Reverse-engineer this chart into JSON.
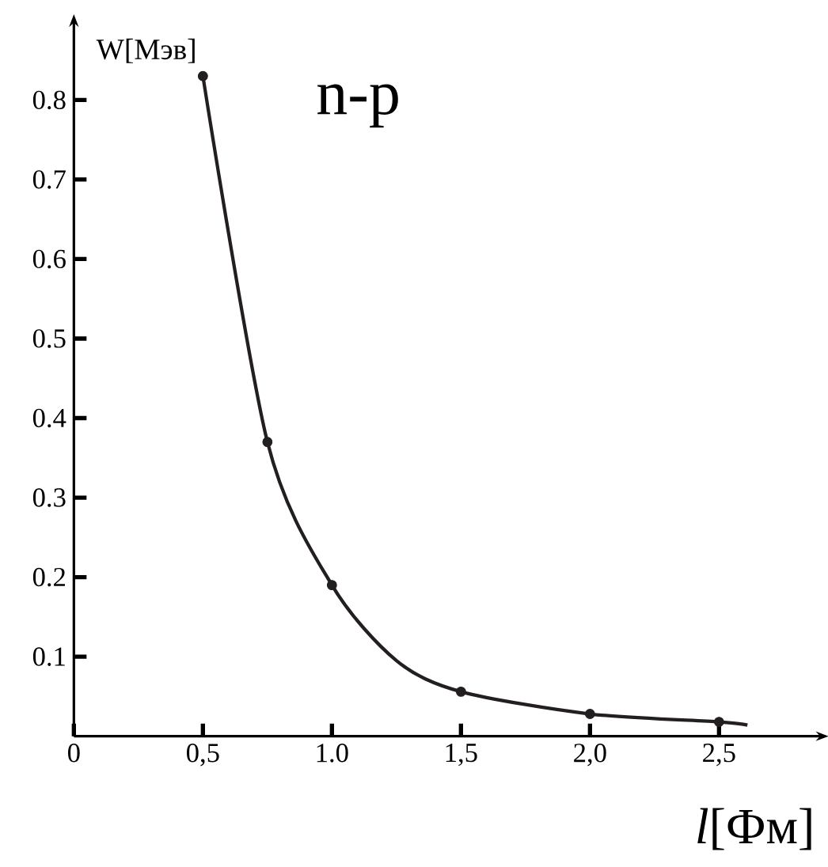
{
  "chart_data": {
    "type": "line",
    "xlabel": "*l*[Фм]",
    "ylabel": "W[Мэв]",
    "annotations": [
      "n-p"
    ],
    "xlim": [
      0,
      2.9
    ],
    "ylim": [
      0,
      0.9
    ],
    "xticks": [
      0,
      {
        "value": 0.5,
        "label": "0,5"
      },
      {
        "value": 1.0,
        "label": "1.0"
      },
      {
        "value": 1.5,
        "label": "1,5"
      },
      {
        "value": 2.0,
        "label": "2,0"
      },
      {
        "value": 2.5,
        "label": "2,5"
      }
    ],
    "yticks": [
      0.1,
      0.2,
      0.3,
      0.4,
      0.5,
      0.6,
      0.7,
      0.8
    ],
    "series": [
      {
        "color": "#231f20",
        "marker": "none",
        "x": [
          0.5,
          0.75,
          1.0,
          1.25,
          1.5,
          2.0,
          2.5,
          2.61
        ],
        "values": [
          0.83,
          0.37,
          0.19,
          0.095,
          0.056,
          0.028,
          0.018,
          0.014
        ]
      },
      {
        "type": "scatter",
        "color": "#231f20",
        "marker": "circle",
        "x": [
          0.5,
          0.75,
          1.0,
          1.5,
          2.0,
          2.5
        ],
        "values": [
          0.83,
          0.37,
          0.19,
          0.056,
          0.028,
          0.018
        ]
      }
    ]
  }
}
